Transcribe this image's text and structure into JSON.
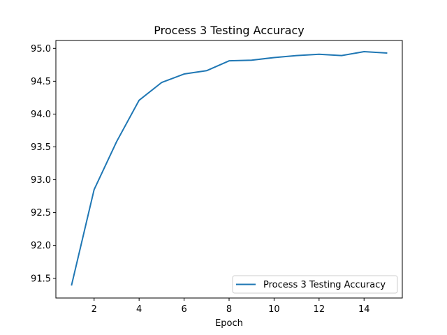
{
  "chart_data": {
    "type": "line",
    "title": "Process 3 Testing Accuracy",
    "xlabel": "Epoch",
    "ylabel": "",
    "xlim": [
      0.3,
      15.7
    ],
    "ylim": [
      91.2,
      95.12
    ],
    "xticks": [
      2,
      4,
      6,
      8,
      10,
      12,
      14
    ],
    "yticks": [
      91.5,
      92.0,
      92.5,
      93.0,
      93.5,
      94.0,
      94.5,
      95.0
    ],
    "ytick_labels": [
      "91.5",
      "92.0",
      "92.5",
      "93.0",
      "93.5",
      "94.0",
      "94.5",
      "95.0"
    ],
    "grid": false,
    "legend_position": "lower right",
    "series": [
      {
        "name": "Process 3 Testing Accuracy",
        "color": "#1f77b4",
        "x": [
          1,
          2,
          3,
          4,
          5,
          6,
          7,
          8,
          9,
          10,
          11,
          12,
          13,
          14,
          15
        ],
        "values": [
          91.4,
          92.85,
          93.58,
          94.21,
          94.48,
          94.61,
          94.66,
          94.81,
          94.82,
          94.86,
          94.89,
          94.91,
          94.89,
          94.95,
          94.93
        ]
      }
    ]
  }
}
